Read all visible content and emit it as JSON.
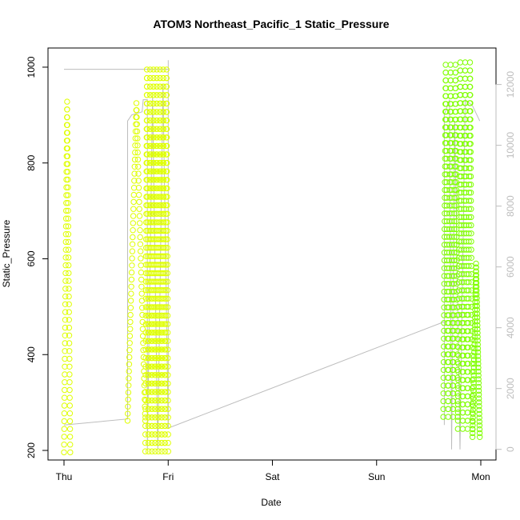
{
  "chart_data": {
    "type": "line",
    "title": "ATOM3 Northeast_Pacific_1 Static_Pressure",
    "xlabel": "Date",
    "ylabel": "Static_Pressure",
    "x_ticks": [
      "Thu",
      "Fri",
      "Sat",
      "Sun",
      "Mon"
    ],
    "y_ticks": [
      200,
      400,
      600,
      800,
      1000
    ],
    "y2_ticks": [
      0,
      2000,
      4000,
      6000,
      8000,
      10000,
      12000
    ],
    "xlim": [
      "Thu 00:00",
      "Mon 00:00"
    ],
    "ylim": [
      180,
      1040
    ],
    "y2lim": [
      -350,
      13200
    ],
    "grid": false,
    "legend": "none",
    "colors": {
      "pressure_points_early": "#dfff00",
      "pressure_points_late": "#80ff00",
      "secondary_line": "#bdbdbd",
      "axis": "#000000",
      "right_axis": "#bdbdbd"
    },
    "series": [
      {
        "axis": "left",
        "style": "points",
        "segments": [
          {
            "start_day": 0.0,
            "end_day": 0.06,
            "ymin": 196,
            "ymax": 928,
            "cycles": 1
          },
          {
            "start_day": 0.61,
            "end_day": 0.78,
            "ymin": 262,
            "ymax": 925,
            "cycles": 1
          },
          {
            "start_day": 0.78,
            "end_day": 1.0,
            "ymin": 198,
            "ymax": 995,
            "cycles": 7
          },
          {
            "start_day": 3.64,
            "end_day": 3.78,
            "ymin": 270,
            "ymax": 1005,
            "cycles": 3
          },
          {
            "start_day": 3.78,
            "end_day": 3.92,
            "ymin": 245,
            "ymax": 1010,
            "cycles": 3
          },
          {
            "start_day": 3.92,
            "end_day": 3.99,
            "ymin": 228,
            "ymax": 590,
            "cycles": 1
          }
        ]
      },
      {
        "axis": "right",
        "style": "line",
        "points": [
          [
            0.0,
            12500
          ],
          [
            0.02,
            12500
          ],
          [
            1.0,
            12500
          ],
          [
            1.0,
            12800
          ],
          [
            1.0,
            12400
          ],
          [
            1.0,
            700
          ],
          [
            3.65,
            4200
          ],
          [
            3.65,
            800
          ],
          [
            3.65,
            11000
          ],
          [
            3.7,
            11500
          ],
          [
            3.72,
            0
          ],
          [
            3.75,
            10800
          ],
          [
            3.8,
            0
          ],
          [
            3.85,
            11500
          ],
          [
            3.92,
            11300
          ],
          [
            3.99,
            10800
          ]
        ],
        "early_points": [
          [
            0.0,
            800
          ],
          [
            0.61,
            1000
          ],
          [
            0.61,
            10800
          ],
          [
            0.65,
            11000
          ],
          [
            0.75,
            11100
          ],
          [
            0.76,
            11500
          ],
          [
            0.8,
            11500
          ],
          [
            0.8,
            0
          ],
          [
            0.85,
            11600
          ],
          [
            0.9,
            0
          ],
          [
            0.95,
            12000
          ],
          [
            1.0,
            700
          ]
        ]
      }
    ]
  }
}
